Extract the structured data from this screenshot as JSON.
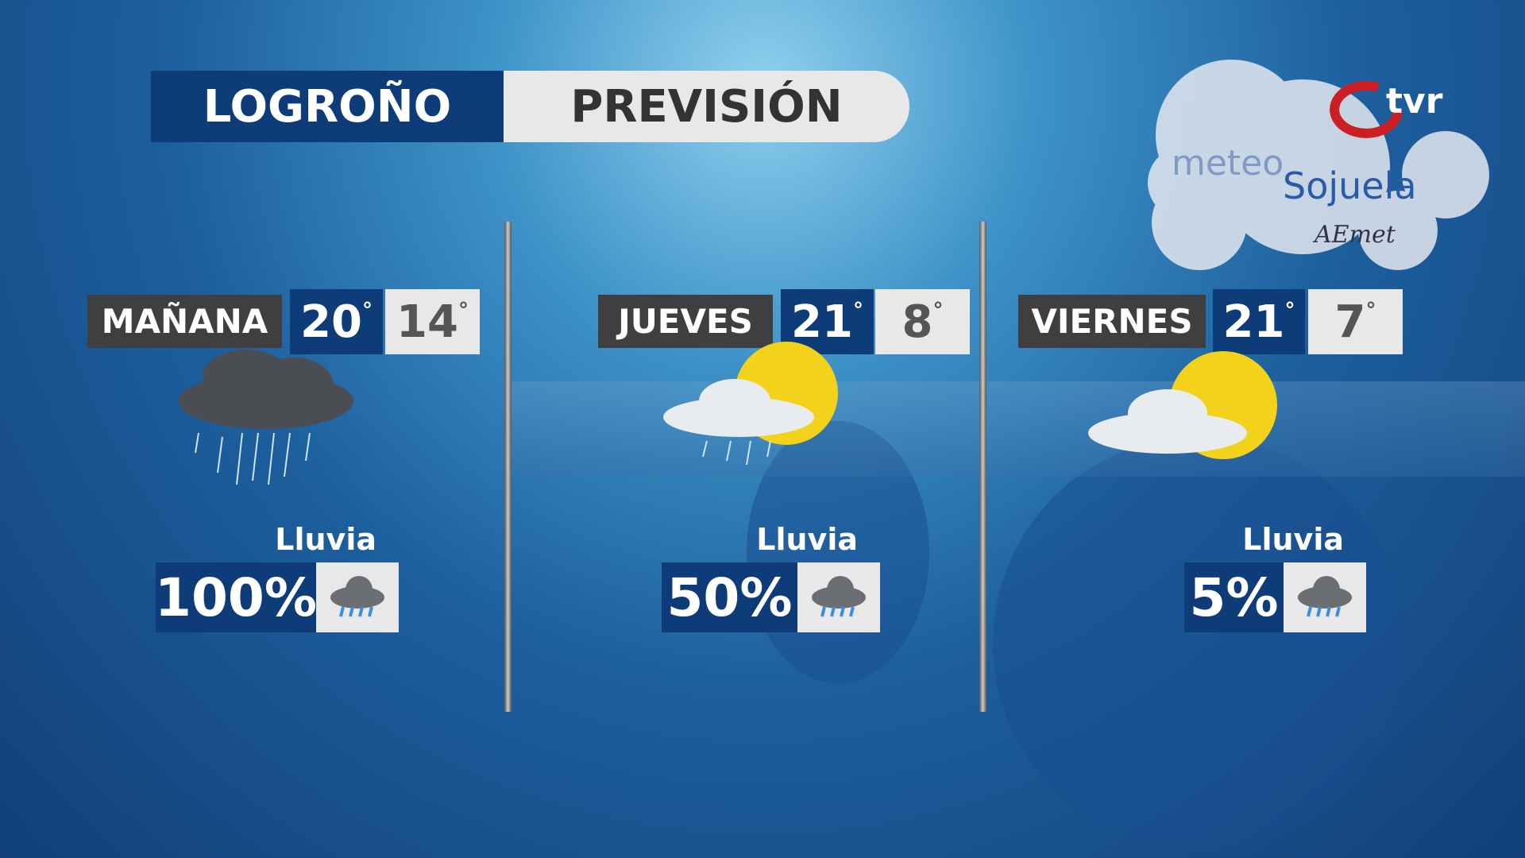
{
  "header": {
    "city": "LOGROÑO",
    "title": "PREVISIÓN"
  },
  "logos": {
    "channel": "tvr",
    "brand_part1": "meteo",
    "brand_part2": "Sojuela",
    "agency": "AEmet"
  },
  "days": [
    {
      "label": "MAÑANA",
      "high": "20",
      "low": "14",
      "condition_icon": "heavy-rain-cloud-icon",
      "rain_label": "Lluvia",
      "rain_pct": "100%",
      "rain_icon": "rain-cloud-icon"
    },
    {
      "label": "JUEVES",
      "high": "21",
      "low": "8",
      "condition_icon": "sun-cloud-rain-icon",
      "rain_label": "Lluvia",
      "rain_pct": "50%",
      "rain_icon": "rain-cloud-icon"
    },
    {
      "label": "VIERNES",
      "high": "21",
      "low": "7",
      "condition_icon": "sun-cloud-icon",
      "rain_label": "Lluvia",
      "rain_pct": "5%",
      "rain_icon": "rain-cloud-icon"
    }
  ],
  "degree_symbol": "°",
  "colors": {
    "navy": "#0e3c78",
    "light": "#e8e8e8",
    "dark": "#3f3f3f",
    "logo_red": "#cc1f24"
  }
}
